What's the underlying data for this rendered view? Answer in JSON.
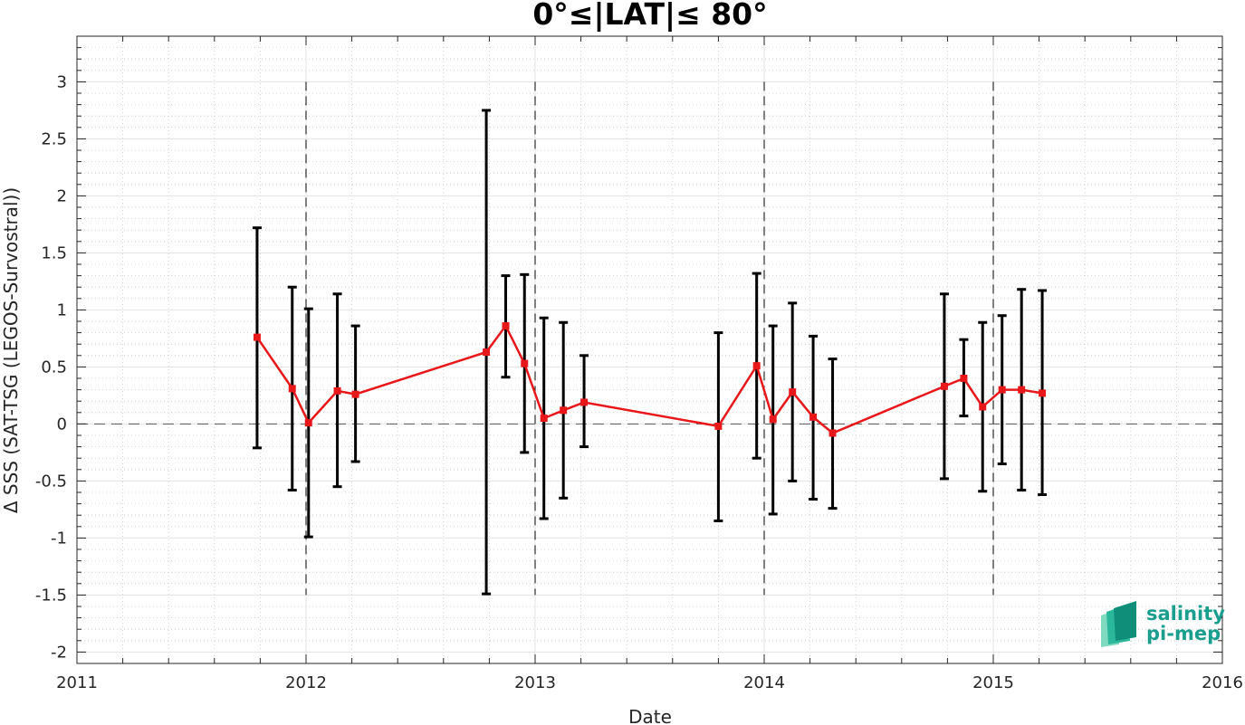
{
  "chart_data": {
    "type": "line",
    "title": "0°≤|LAT|≤ 80°",
    "xlabel": "Date",
    "ylabel": "Δ SSS (SAT-TSG (LEGOS-Survostral))",
    "x_axis_type": "date",
    "xlim": [
      "2011-01-01",
      "2016-01-01"
    ],
    "ylim": [
      -2.1,
      3.4
    ],
    "x_ticks": [
      "2011",
      "2012",
      "2013",
      "2014",
      "2015",
      "2016"
    ],
    "y_ticks": [
      "-2",
      "-1.5",
      "-1",
      "-0.5",
      "0",
      "0.5",
      "1",
      "1.5",
      "2",
      "2.5",
      "3"
    ],
    "grid": true,
    "minor_grid": true,
    "reference_line_y": 0,
    "year_boundary_lines": [
      "2012-01-01",
      "2013-01-01",
      "2014-01-01",
      "2015-01-01"
    ],
    "series": [
      {
        "color": "#e8171a",
        "errorbar_color": "#000000",
        "points": [
          {
            "x": "2011-10-15",
            "y": 0.76,
            "lo": -0.21,
            "hi": 1.72
          },
          {
            "x": "2011-12-10",
            "y": 0.31,
            "lo": -0.58,
            "hi": 1.2
          },
          {
            "x": "2012-01-05",
            "y": 0.01,
            "lo": -0.99,
            "hi": 1.01
          },
          {
            "x": "2012-02-20",
            "y": 0.29,
            "lo": -0.55,
            "hi": 1.14
          },
          {
            "x": "2012-03-20",
            "y": 0.26,
            "lo": -0.33,
            "hi": 0.86
          },
          {
            "x": "2012-10-15",
            "y": 0.63,
            "lo": -1.49,
            "hi": 2.75
          },
          {
            "x": "2012-11-15",
            "y": 0.86,
            "lo": 0.41,
            "hi": 1.3
          },
          {
            "x": "2012-12-15",
            "y": 0.53,
            "lo": -0.25,
            "hi": 1.31
          },
          {
            "x": "2013-01-15",
            "y": 0.05,
            "lo": -0.83,
            "hi": 0.93
          },
          {
            "x": "2013-02-15",
            "y": 0.12,
            "lo": -0.65,
            "hi": 0.89
          },
          {
            "x": "2013-03-20",
            "y": 0.19,
            "lo": -0.2,
            "hi": 0.6
          },
          {
            "x": "2013-10-20",
            "y": -0.02,
            "lo": -0.85,
            "hi": 0.8
          },
          {
            "x": "2013-12-20",
            "y": 0.51,
            "lo": -0.3,
            "hi": 1.32
          },
          {
            "x": "2014-01-15",
            "y": 0.04,
            "lo": -0.79,
            "hi": 0.86
          },
          {
            "x": "2014-02-15",
            "y": 0.28,
            "lo": -0.5,
            "hi": 1.06
          },
          {
            "x": "2014-03-20",
            "y": 0.06,
            "lo": -0.66,
            "hi": 0.77
          },
          {
            "x": "2014-04-20",
            "y": -0.08,
            "lo": -0.74,
            "hi": 0.57
          },
          {
            "x": "2014-10-15",
            "y": 0.33,
            "lo": -0.48,
            "hi": 1.14
          },
          {
            "x": "2014-11-15",
            "y": 0.4,
            "lo": 0.07,
            "hi": 0.74
          },
          {
            "x": "2014-12-15",
            "y": 0.15,
            "lo": -0.59,
            "hi": 0.89
          },
          {
            "x": "2015-01-15",
            "y": 0.3,
            "lo": -0.35,
            "hi": 0.95
          },
          {
            "x": "2015-02-15",
            "y": 0.3,
            "lo": -0.58,
            "hi": 1.18
          },
          {
            "x": "2015-03-20",
            "y": 0.27,
            "lo": -0.62,
            "hi": 1.17
          }
        ]
      }
    ]
  },
  "logo": {
    "line1": "salinity",
    "line2": "pi-mep",
    "colors": [
      "#0f8e7a",
      "#2bb79a",
      "#7fd9bf"
    ]
  }
}
